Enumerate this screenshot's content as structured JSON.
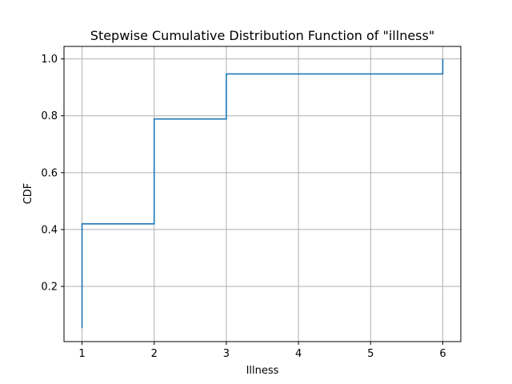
{
  "chart_data": {
    "type": "line",
    "step": "post",
    "title": "Stepwise Cumulative Distribution Function of \"illness\"",
    "xlabel": "Illness",
    "ylabel": "CDF",
    "xlim": [
      0.75,
      6.25
    ],
    "ylim": [
      0.006,
      1.044
    ],
    "xticks": [
      1,
      2,
      3,
      4,
      5,
      6
    ],
    "xtick_labels": [
      "1",
      "2",
      "3",
      "4",
      "5",
      "6"
    ],
    "yticks": [
      0.2,
      0.4,
      0.6,
      0.8,
      1.0
    ],
    "ytick_labels": [
      "0.2",
      "0.4",
      "0.6",
      "0.8",
      "1.0"
    ],
    "grid": true,
    "legend": "none",
    "series": [
      {
        "color": "#1f77b4",
        "x": [
          1,
          1,
          2,
          2,
          3,
          3,
          6,
          6
        ],
        "y": [
          0.053,
          0.42,
          0.42,
          0.789,
          0.789,
          0.947,
          0.947,
          1.0
        ]
      }
    ]
  }
}
